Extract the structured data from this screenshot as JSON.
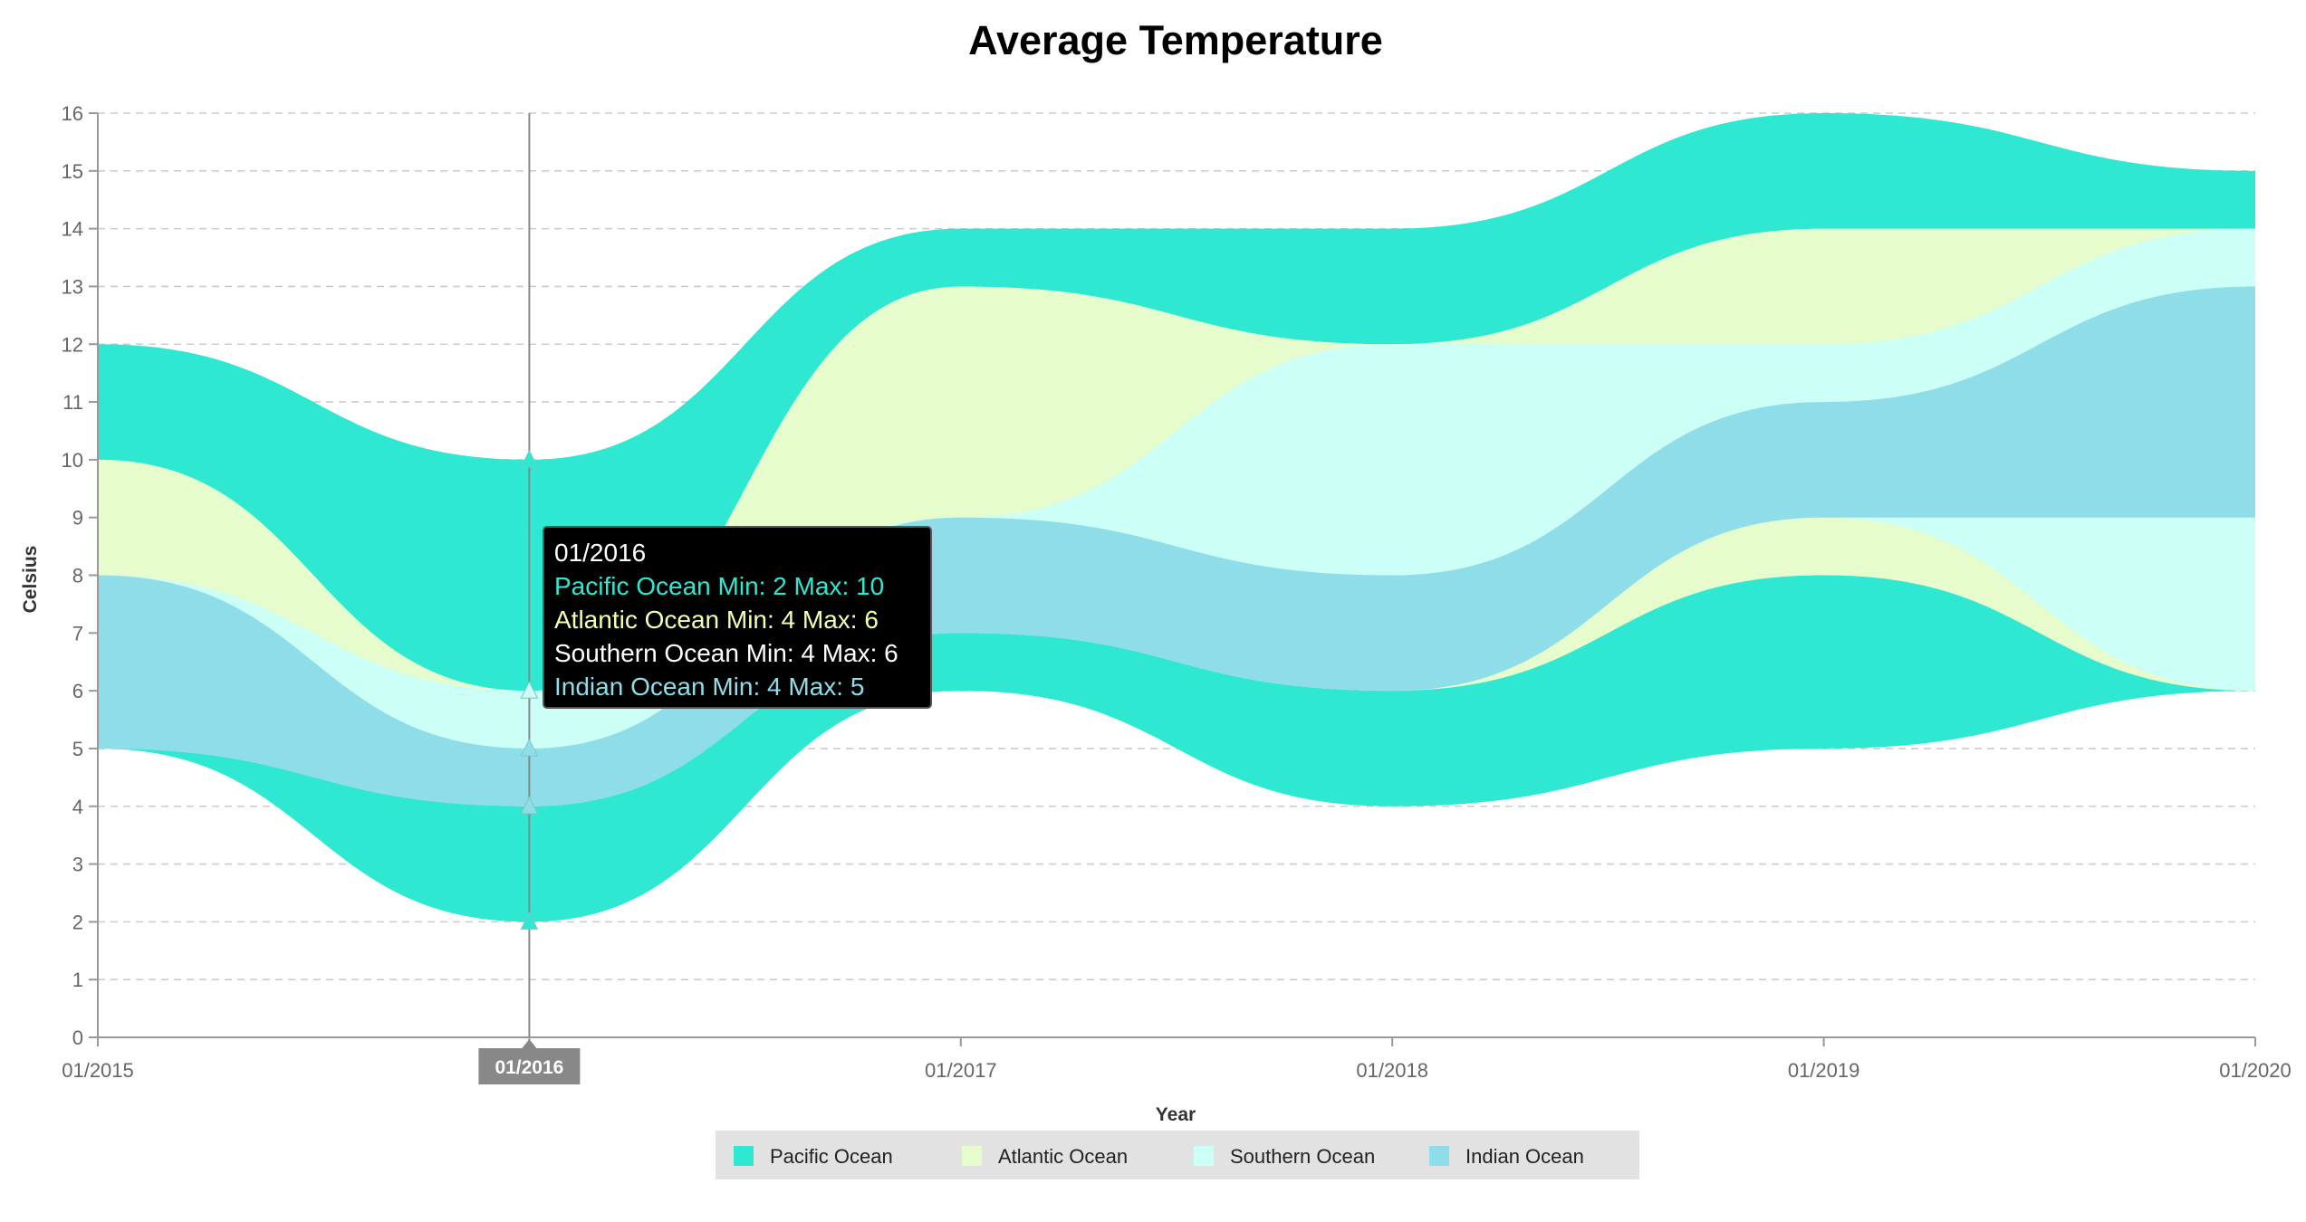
{
  "chart_data": {
    "type": "area",
    "subtype": "range-area-stacked",
    "title": "Average Temperature",
    "xlabel": "Year",
    "ylabel": "Celsius",
    "x": [
      "01/2015",
      "01/2016",
      "01/2017",
      "01/2018",
      "01/2019",
      "01/2020"
    ],
    "ylim": [
      0,
      16
    ],
    "yticks": [
      0,
      1,
      2,
      3,
      4,
      5,
      6,
      7,
      8,
      9,
      10,
      11,
      12,
      13,
      14,
      15,
      16
    ],
    "grid": true,
    "legend_position": "bottom",
    "series": [
      {
        "name": "Pacific Ocean",
        "color": "#2ee8d1",
        "min": [
          5,
          2,
          6,
          4,
          5,
          6
        ],
        "max": [
          12,
          10,
          14,
          14,
          16,
          15
        ]
      },
      {
        "name": "Atlantic Ocean",
        "color": "#e6fccc",
        "min": [
          6,
          4,
          7,
          6,
          8,
          6
        ],
        "max": [
          10,
          6,
          13,
          12,
          14,
          14
        ]
      },
      {
        "name": "Southern Ocean",
        "color": "#ccfff6",
        "min": [
          7,
          4,
          8,
          6,
          9,
          6
        ],
        "max": [
          8,
          6,
          9,
          12,
          12,
          14
        ]
      },
      {
        "name": "Indian Ocean",
        "color": "#8fdde8",
        "min": [
          5,
          4,
          7,
          6,
          9,
          9
        ],
        "max": [
          8,
          5,
          9,
          8,
          11,
          13
        ]
      }
    ],
    "crosshair": {
      "x_label": "01/2016"
    },
    "tooltip": {
      "header": "01/2016",
      "lines": [
        "Pacific Ocean Min: 2 Max: 10",
        "Atlantic Ocean Min: 4 Max: 6",
        "Southern Ocean Min: 4 Max: 6",
        "Indian Ocean Min: 4 Max: 5"
      ],
      "line_colors": [
        "#2ee8d1",
        "#f5ffb0",
        "#ffffff",
        "#8fdde8"
      ]
    }
  }
}
